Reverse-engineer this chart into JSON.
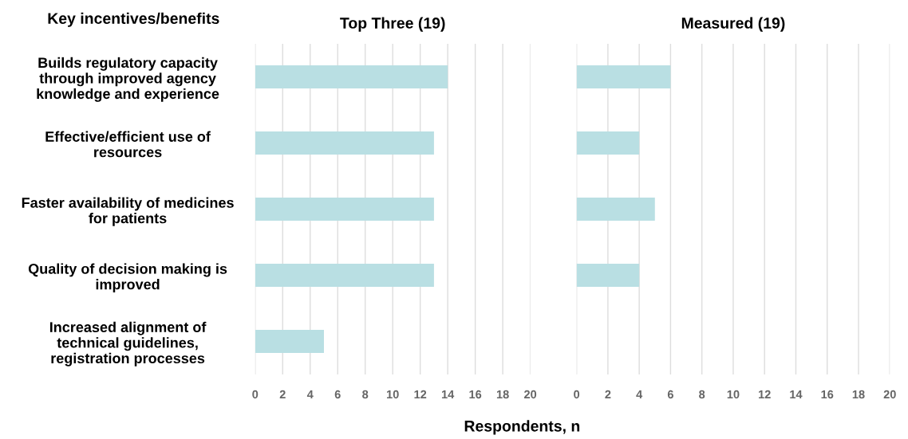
{
  "chart_data": [
    {
      "type": "bar",
      "orientation": "horizontal",
      "title": "Top Three (19)",
      "categories": [
        "Builds regulatory capacity\nthrough improved agency\nknowledge and experience",
        "Effective/efficient use of\nresources",
        "Faster availability of medicines\nfor patients",
        "Quality of decision making is\nimproved",
        "Increased alignment of\ntechnical guidelines,\nregistration processes"
      ],
      "values": [
        14,
        13,
        13,
        13,
        5
      ],
      "color": "#b9dfe3",
      "xlim": [
        0,
        20
      ],
      "xticks": [
        0,
        2,
        4,
        6,
        8,
        10,
        12,
        14,
        16,
        18,
        20
      ],
      "grid": "x",
      "annotations": [
        "Key incentives/benefits",
        "Respondents, n"
      ]
    },
    {
      "type": "bar",
      "orientation": "horizontal",
      "title": "Measured (19)",
      "categories": [
        null,
        null,
        null,
        null,
        null
      ],
      "values": [
        6,
        4,
        5,
        4,
        0
      ],
      "color": "#b9dfe3",
      "xlim": [
        0,
        20
      ],
      "xticks": [
        0,
        2,
        4,
        6,
        8,
        10,
        12,
        14,
        16,
        18,
        20
      ],
      "grid": "x",
      "tick_labels": "x"
    }
  ]
}
